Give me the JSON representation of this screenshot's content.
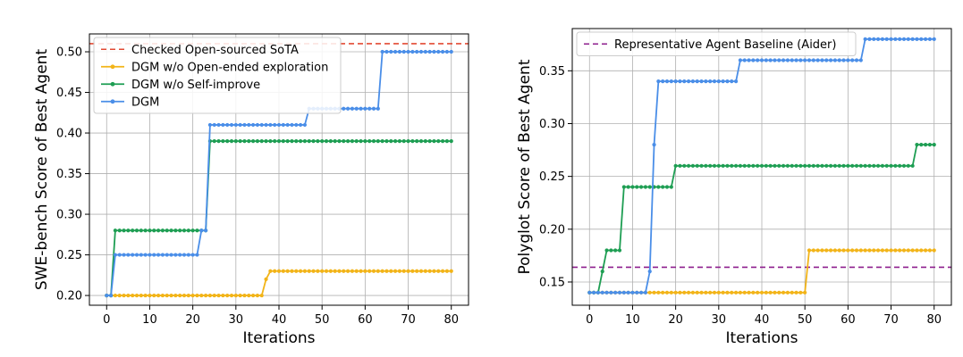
{
  "colors": {
    "sota": "#e24a33",
    "open_ended": "#f2b418",
    "self_improve": "#1e9e53",
    "dgm": "#4a8ee8",
    "aider": "#8e1f8e"
  },
  "chart_data": [
    {
      "type": "line",
      "xlabel": "Iterations",
      "ylabel": "SWE-bench Score of Best Agent",
      "xlim": [
        -4,
        84
      ],
      "ylim": [
        0.188,
        0.522
      ],
      "xticks": [
        0,
        10,
        20,
        30,
        40,
        50,
        60,
        70,
        80
      ],
      "xtick_labels": [
        "0",
        "10",
        "20",
        "30",
        "40",
        "50",
        "60",
        "70",
        "80"
      ],
      "yticks": [
        0.2,
        0.25,
        0.3,
        0.35,
        0.4,
        0.45,
        0.5
      ],
      "ytick_labels": [
        "0.20",
        "0.25",
        "0.30",
        "0.35",
        "0.40",
        "0.45",
        "0.50"
      ],
      "grid": true,
      "legend_position": "top-left",
      "reference_lines": [
        {
          "name": "Checked Open-sourced SoTA",
          "y": 0.51,
          "color": "#e24a33",
          "style": "dashed"
        }
      ],
      "series": [
        {
          "name": "DGM w/o Open-ended exploration",
          "color": "#f2b418",
          "segments": [
            [
              0,
              36,
              0.2
            ],
            [
              37,
              37,
              0.22
            ],
            [
              38,
              80,
              0.23
            ]
          ]
        },
        {
          "name": "DGM w/o Self-improve",
          "color": "#1e9e53",
          "segments": [
            [
              0,
              1,
              0.2
            ],
            [
              2,
              23,
              0.28
            ],
            [
              24,
              80,
              0.39
            ]
          ]
        },
        {
          "name": "DGM",
          "color": "#4a8ee8",
          "segments": [
            [
              0,
              1,
              0.2
            ],
            [
              2,
              21,
              0.25
            ],
            [
              22,
              23,
              0.28
            ],
            [
              24,
              46,
              0.41
            ],
            [
              47,
              63,
              0.43
            ],
            [
              64,
              80,
              0.5
            ]
          ]
        }
      ]
    },
    {
      "type": "line",
      "xlabel": "Iterations",
      "ylabel": "Polyglot Score of Best Agent",
      "xlim": [
        -4,
        84
      ],
      "ylim": [
        0.128,
        0.39
      ],
      "xticks": [
        0,
        10,
        20,
        30,
        40,
        50,
        60,
        70,
        80
      ],
      "xtick_labels": [
        "0",
        "10",
        "20",
        "30",
        "40",
        "50",
        "60",
        "70",
        "80"
      ],
      "yticks": [
        0.15,
        0.2,
        0.25,
        0.3,
        0.35
      ],
      "ytick_labels": [
        "0.15",
        "0.20",
        "0.25",
        "0.30",
        "0.35"
      ],
      "grid": true,
      "legend_position": "top-left",
      "reference_lines": [
        {
          "name": "Representative Agent Baseline (Aider)",
          "y": 0.164,
          "color": "#8e1f8e",
          "style": "dashed"
        }
      ],
      "series": [
        {
          "name": "",
          "color": "#f2b418",
          "segments": [
            [
              0,
              50,
              0.14
            ],
            [
              51,
              80,
              0.18
            ]
          ]
        },
        {
          "name": "",
          "color": "#1e9e53",
          "segments": [
            [
              0,
              2,
              0.14
            ],
            [
              3,
              3,
              0.16
            ],
            [
              4,
              7,
              0.18
            ],
            [
              8,
              19,
              0.24
            ],
            [
              20,
              75,
              0.26
            ],
            [
              76,
              80,
              0.28
            ]
          ]
        },
        {
          "name": "",
          "color": "#4a8ee8",
          "segments": [
            [
              0,
              13,
              0.14
            ],
            [
              14,
              14,
              0.16
            ],
            [
              15,
              15,
              0.28
            ],
            [
              16,
              34,
              0.34
            ],
            [
              35,
              63,
              0.36
            ],
            [
              64,
              80,
              0.38
            ]
          ]
        }
      ]
    }
  ]
}
